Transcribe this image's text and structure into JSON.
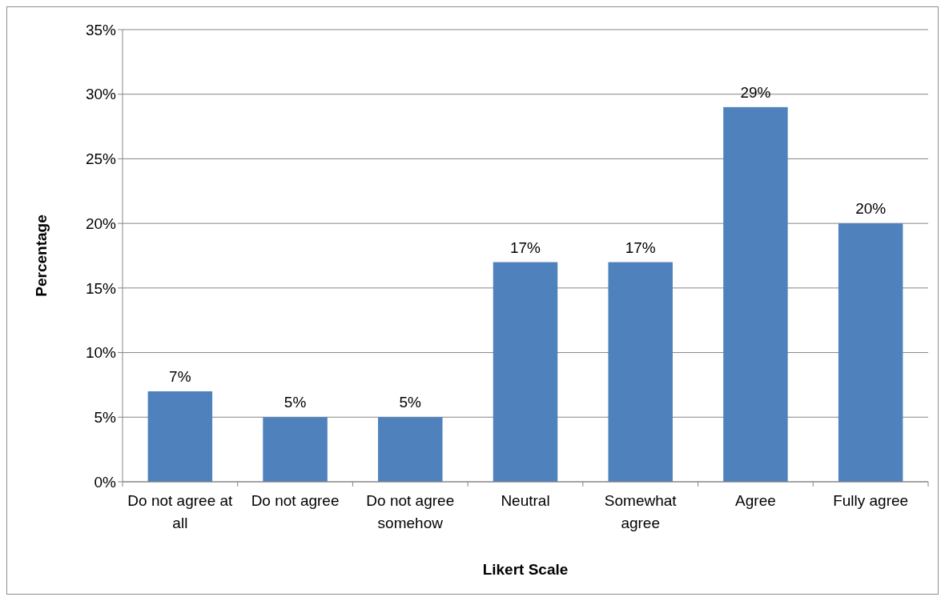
{
  "chart_data": {
    "type": "bar",
    "xlabel": "Likert Scale",
    "ylabel": "Percentage",
    "categories": [
      "Do not agree at all",
      "Do not agree",
      "Do not agree somehow",
      "Neutral",
      "Somewhat agree",
      "Agree",
      "Fully agree"
    ],
    "values": [
      7,
      5,
      5,
      17,
      17,
      29,
      20
    ],
    "value_labels": [
      "7%",
      "5%",
      "5%",
      "17%",
      "17%",
      "29%",
      "20%"
    ],
    "color": "#4f81bd",
    "ylim": [
      0,
      35
    ],
    "yticks": [
      {
        "value": 0,
        "label": "0%"
      },
      {
        "value": 5,
        "label": "5%"
      },
      {
        "value": 10,
        "label": "10%"
      },
      {
        "value": 15,
        "label": "15%"
      },
      {
        "value": 20,
        "label": "20%"
      },
      {
        "value": 25,
        "label": "25%"
      },
      {
        "value": 30,
        "label": "30%"
      },
      {
        "value": 35,
        "label": "35%"
      }
    ],
    "grid": true
  }
}
